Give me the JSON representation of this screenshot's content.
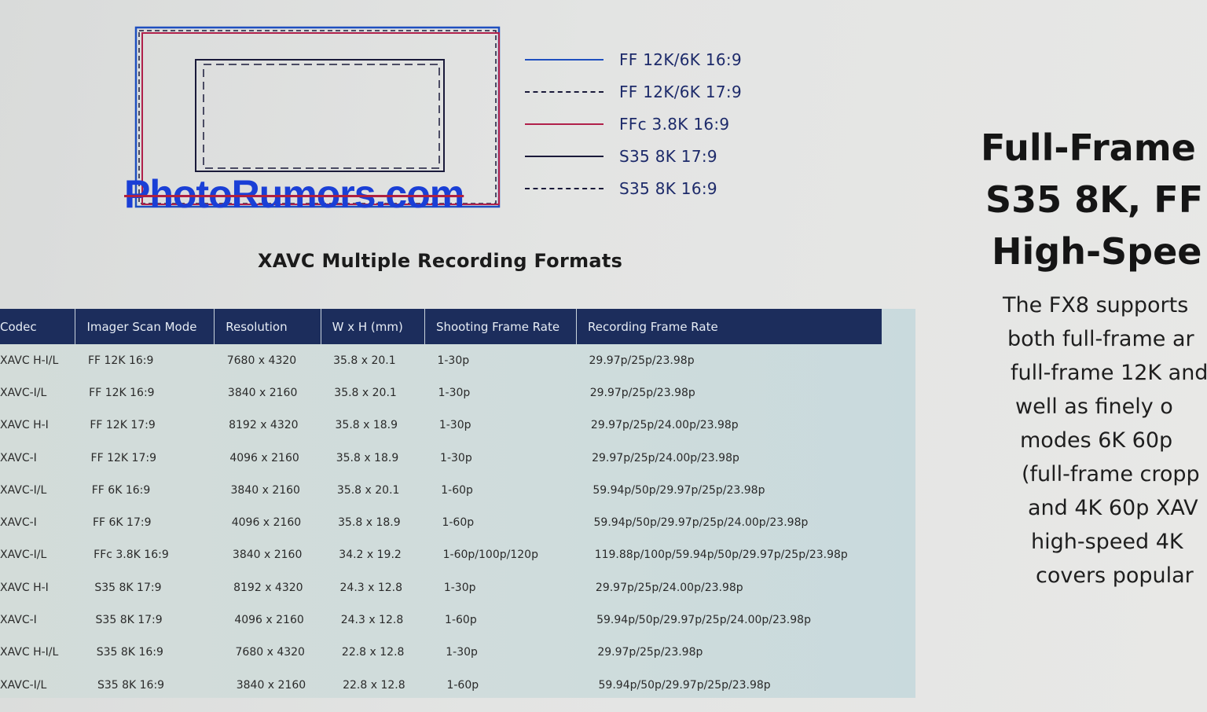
{
  "diagram": {
    "legend": [
      {
        "label": "FF 12K/6K 16:9",
        "style": "solid",
        "color": "#1f4fbf"
      },
      {
        "label": "FF 12K/6K 17:9",
        "style": "dashed",
        "color": "#1a1a3a"
      },
      {
        "label": "FFc 3.8K 16:9",
        "style": "solid",
        "color": "#b0204a"
      },
      {
        "label": "S35 8K 17:9",
        "style": "solid",
        "color": "#1a1a3a"
      },
      {
        "label": "S35 8K 16:9",
        "style": "dashed",
        "color": "#1a1a3a"
      }
    ]
  },
  "watermark": "PhotoRumors.com",
  "title": "XAVC Multiple Recording Formats",
  "table": {
    "headers": [
      "Codec",
      "Imager Scan Mode",
      "Resolution",
      "W x H (mm)",
      "Shooting Frame Rate",
      "Recording Frame Rate"
    ],
    "rows": [
      [
        "XAVC H-I/L",
        "FF 12K 16:9",
        "7680 x 4320",
        "35.8 x 20.1",
        "1-30p",
        "29.97p/25p/23.98p"
      ],
      [
        "XAVC-I/L",
        "FF 12K 16:9",
        "3840 x 2160",
        "35.8 x 20.1",
        "1-30p",
        "29.97p/25p/23.98p"
      ],
      [
        "XAVC H-I",
        "FF 12K 17:9",
        "8192 x 4320",
        "35.8 x 18.9",
        "1-30p",
        "29.97p/25p/24.00p/23.98p"
      ],
      [
        "XAVC-I",
        "FF 12K 17:9",
        "4096 x 2160",
        "35.8 x 18.9",
        "1-30p",
        "29.97p/25p/24.00p/23.98p"
      ],
      [
        "XAVC-I/L",
        "FF 6K 16:9",
        "3840 x 2160",
        "35.8 x 20.1",
        "1-60p",
        "59.94p/50p/29.97p/25p/23.98p"
      ],
      [
        "XAVC-I",
        "FF 6K 17:9",
        "4096 x 2160",
        "35.8 x 18.9",
        "1-60p",
        "59.94p/50p/29.97p/25p/24.00p/23.98p"
      ],
      [
        "XAVC-I/L",
        "FFc 3.8K 16:9",
        "3840 x 2160",
        "34.2 x 19.2",
        "1-60p/100p/120p",
        "119.88p/100p/59.94p/50p/29.97p/25p/23.98p"
      ],
      [
        "XAVC H-I",
        "S35 8K 17:9",
        "8192 x 4320",
        "24.3 x 12.8",
        "1-30p",
        "29.97p/25p/24.00p/23.98p"
      ],
      [
        "XAVC-I",
        "S35 8K 17:9",
        "4096 x 2160",
        "24.3 x 12.8",
        "1-60p",
        "59.94p/50p/29.97p/25p/24.00p/23.98p"
      ],
      [
        "XAVC H-I/L",
        "S35 8K 16:9",
        "7680 x 4320",
        "22.8 x 12.8",
        "1-30p",
        "29.97p/25p/23.98p"
      ],
      [
        "XAVC-I/L",
        "S35 8K 16:9",
        "3840 x 2160",
        "22.8 x 12.8",
        "1-60p",
        "59.94p/50p/29.97p/25p/23.98p"
      ]
    ]
  },
  "side": {
    "headline": [
      "Full-Frame",
      "S35 8K, FF",
      "High-Spee"
    ],
    "paragraph": [
      "The FX8 supports",
      "both full-frame ar",
      "full-frame 12K and",
      "well  as  finely  o",
      "modes  6K  60p",
      "(full-frame cropp",
      "and 4K 60p XAV",
      "high-speed 4K",
      "covers popular"
    ]
  },
  "colors": {
    "header_bg": "#1c2d5c",
    "table_bg": "#cfdcdb",
    "legend_text": "#1d2a6a",
    "watermark": "#1a3fd6"
  }
}
